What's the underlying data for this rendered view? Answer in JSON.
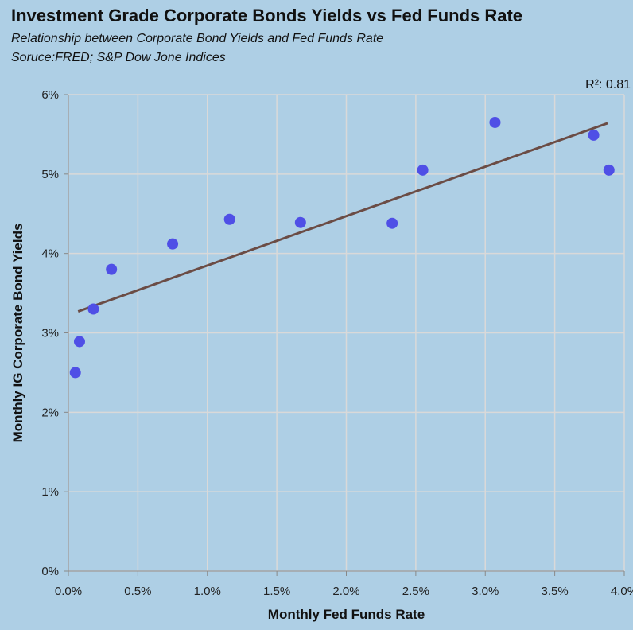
{
  "title": "Investment Grade Corporate Bonds Yields vs Fed Funds Rate",
  "subtitle": "Relationship between Corporate Bond Yields and Fed Funds Rate",
  "source": "Soruce:FRED; S&P Dow Jone Indices",
  "colors": {
    "background": "#aecfe5",
    "points": "#4f4fe6",
    "trendline": "#6b4c45",
    "grid": "#d9d9d9"
  },
  "chart_data": {
    "type": "scatter",
    "xlabel": "Monthly Fed Funds Rate",
    "ylabel": "Monthly IG Corporate Bond Yields",
    "xlim": [
      0,
      4
    ],
    "ylim": [
      0,
      6
    ],
    "x_ticks": [
      "0.0%",
      "0.5%",
      "1.0%",
      "1.5%",
      "2.0%",
      "2.5%",
      "3.0%",
      "3.5%",
      "4.0%"
    ],
    "y_ticks": [
      "0%",
      "1%",
      "2%",
      "3%",
      "4%",
      "5%",
      "6%"
    ],
    "grid": true,
    "points": [
      {
        "x": 0.05,
        "y": 2.5
      },
      {
        "x": 0.08,
        "y": 2.89
      },
      {
        "x": 0.18,
        "y": 3.3
      },
      {
        "x": 0.31,
        "y": 3.8
      },
      {
        "x": 0.75,
        "y": 4.12
      },
      {
        "x": 1.16,
        "y": 4.43
      },
      {
        "x": 1.67,
        "y": 4.39
      },
      {
        "x": 2.33,
        "y": 4.38
      },
      {
        "x": 2.55,
        "y": 5.05
      },
      {
        "x": 3.07,
        "y": 5.65
      },
      {
        "x": 3.78,
        "y": 5.49
      },
      {
        "x": 3.89,
        "y": 5.05
      }
    ],
    "trendline": {
      "x": [
        0.07,
        3.88
      ],
      "y": [
        3.27,
        5.64
      ]
    },
    "r_squared_label": "R²: 0.81"
  }
}
